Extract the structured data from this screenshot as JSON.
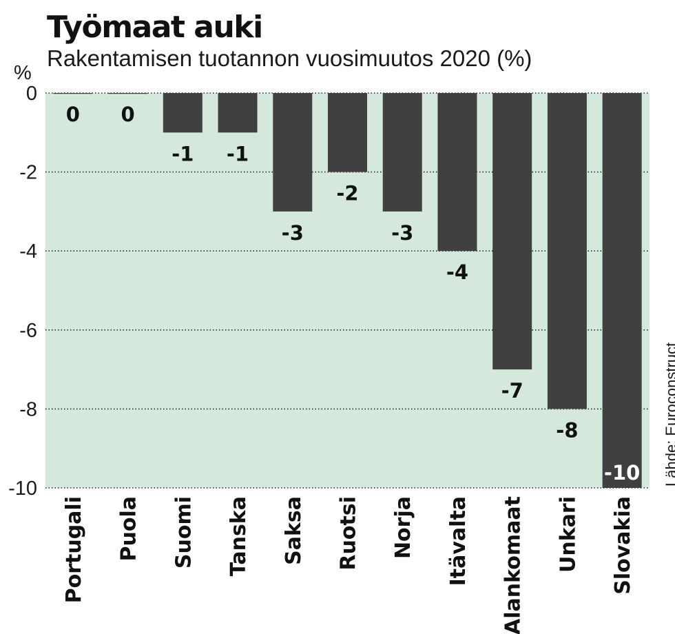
{
  "header": {
    "title": "Työmaat auki",
    "subtitle": "Rakentamisen tuotannon vuosimuutos 2020 (%)",
    "unit": "%",
    "source": "Lähde: Euroconstruct"
  },
  "colors": {
    "plot_background": "#d4e9dc",
    "bar": "#404040",
    "label_dark": "#111111",
    "label_light": "#ffffff"
  },
  "chart_data": {
    "type": "bar",
    "title": "Työmaat auki",
    "subtitle": "Rakentamisen tuotannon vuosimuutos 2020 (%)",
    "ylabel": "%",
    "xlabel": "",
    "categories": [
      "Portugali",
      "Puola",
      "Suomi",
      "Tanska",
      "Saksa",
      "Ruotsi",
      "Norja",
      "Itävalta",
      "Alankomaat",
      "Unkari",
      "Slovakia"
    ],
    "values": [
      0,
      0,
      -1,
      -1,
      -3,
      -2,
      -3,
      -4,
      -7,
      -8,
      -10
    ],
    "value_labels": [
      "0",
      "0",
      "-1",
      "-1",
      "-3",
      "-2",
      "-3",
      "-4",
      "-7",
      "-8",
      "-10"
    ],
    "ylim": [
      -10,
      0
    ],
    "yticks": [
      0,
      -2,
      -4,
      -6,
      -8,
      -10
    ],
    "ytick_labels": [
      "0",
      "-2",
      "-4",
      "-6",
      "-8",
      "-10"
    ],
    "grid": true,
    "legend": "none"
  }
}
